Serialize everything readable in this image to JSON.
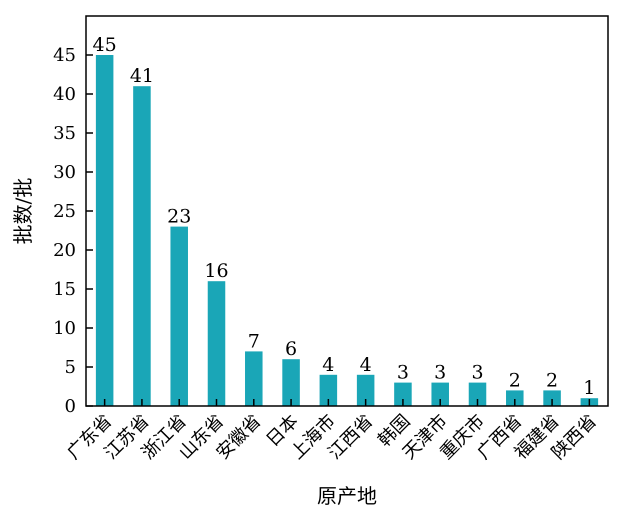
{
  "chart_data": {
    "type": "bar",
    "categories": [
      "广东省",
      "江苏省",
      "浙江省",
      "山东省",
      "安徽省",
      "日本",
      "上海市",
      "江西省",
      "韩国",
      "天津市",
      "重庆市",
      "广西省",
      "福建省",
      "陕西省"
    ],
    "values": [
      45,
      41,
      23,
      16,
      7,
      6,
      4,
      4,
      3,
      3,
      3,
      2,
      2,
      1
    ],
    "data_labels": [
      "45",
      "41",
      "23",
      "16",
      "7",
      "6",
      "4",
      "4",
      "3",
      "3",
      "3",
      "2",
      "2",
      "1"
    ],
    "xlabel": "原产地",
    "ylabel": "批数/批",
    "ylim": [
      0,
      50
    ],
    "yticks": [
      0,
      5,
      10,
      15,
      20,
      25,
      30,
      35,
      40,
      45
    ],
    "ytick_labels": [
      "0",
      "5",
      "10",
      "15",
      "20",
      "25",
      "30",
      "35",
      "40",
      "45"
    ],
    "bar_color": "#1aa6b7",
    "grid": false,
    "legend": "none"
  }
}
